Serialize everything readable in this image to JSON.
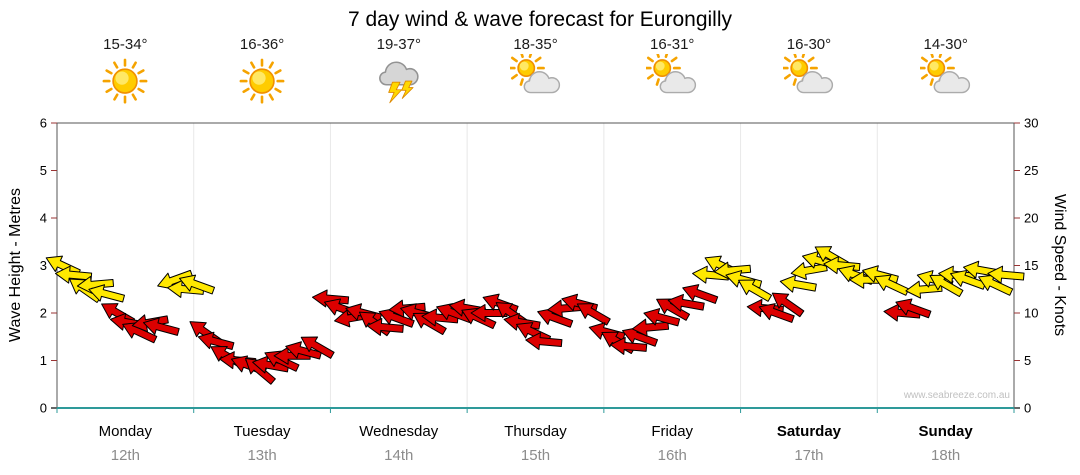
{
  "title": "7 day wind & wave forecast for Eurongilly",
  "watermark": "www.seabreeze.com.au",
  "axes": {
    "left_label": "Wave Height - Metres",
    "right_label": "Wind Speed - Knots",
    "left_ticks": [
      0,
      1,
      2,
      3,
      4,
      5,
      6
    ],
    "right_ticks": [
      0,
      5,
      10,
      15,
      20,
      25,
      30
    ]
  },
  "days": [
    {
      "name": "Monday",
      "date": "12th",
      "temp": "15-34°",
      "icon": "sunny",
      "bold": false
    },
    {
      "name": "Tuesday",
      "date": "13th",
      "temp": "16-36°",
      "icon": "sunny",
      "bold": false
    },
    {
      "name": "Wednesday",
      "date": "14th",
      "temp": "19-37°",
      "icon": "thunderstorm",
      "bold": false
    },
    {
      "name": "Thursday",
      "date": "15th",
      "temp": "18-35°",
      "icon": "sun-cloud",
      "bold": false
    },
    {
      "name": "Friday",
      "date": "16th",
      "temp": "16-31°",
      "icon": "sun-cloud",
      "bold": false
    },
    {
      "name": "Saturday",
      "date": "17th",
      "temp": "16-30°",
      "icon": "sun-cloud",
      "bold": true
    },
    {
      "name": "Sunday",
      "date": "18th",
      "temp": "14-30°",
      "icon": "sun-cloud",
      "bold": true
    }
  ],
  "colors": {
    "arrow_yellow": "#FFE800",
    "arrow_red": "#DC0000",
    "axis_teal": "#2E9A9A",
    "tick_red": "#993333",
    "date_gray": "#8C8C8C",
    "watermark_gray": "#C0C0C0"
  },
  "chart_data": {
    "type": "wind-arrows",
    "title": "7 day wind & wave forecast for Eurongilly",
    "categories": [
      "Monday 12th",
      "Tuesday 13th",
      "Wednesday 14th",
      "Thursday 15th",
      "Friday 16th",
      "Saturday 17th",
      "Sunday 18th"
    ],
    "left_axis": {
      "label": "Wave Height - Metres",
      "range": [
        0,
        6
      ]
    },
    "right_axis": {
      "label": "Wind Speed - Knots",
      "range": [
        0,
        30
      ]
    },
    "legend": "arrow color: y = yellow arrow, r = red arrow; t = position in days across 7-day span; kn = wind speed in knots (right axis); d = arrow rotation degrees (0 = pointing right)",
    "arrows": [
      {
        "t": 0.04,
        "kn": 15.0,
        "c": "y",
        "d": 205
      },
      {
        "t": 0.12,
        "kn": 14.0,
        "c": "y",
        "d": 185
      },
      {
        "t": 0.2,
        "kn": 12.5,
        "c": "y",
        "d": 215
      },
      {
        "t": 0.28,
        "kn": 13.0,
        "c": "y",
        "d": 175
      },
      {
        "t": 0.36,
        "kn": 12.0,
        "c": "y",
        "d": 195
      },
      {
        "t": 0.44,
        "kn": 10.0,
        "c": "r",
        "d": 210
      },
      {
        "t": 0.52,
        "kn": 9.0,
        "c": "r",
        "d": 190
      },
      {
        "t": 0.6,
        "kn": 8.0,
        "c": "r",
        "d": 205
      },
      {
        "t": 0.68,
        "kn": 9.0,
        "c": "r",
        "d": 170
      },
      {
        "t": 0.76,
        "kn": 8.5,
        "c": "r",
        "d": 195
      },
      {
        "t": 0.86,
        "kn": 13.5,
        "c": "y",
        "d": 160
      },
      {
        "t": 0.94,
        "kn": 12.5,
        "c": "y",
        "d": 185
      },
      {
        "t": 1.02,
        "kn": 13.0,
        "c": "y",
        "d": 200
      },
      {
        "t": 1.08,
        "kn": 8.0,
        "c": "r",
        "d": 215
      },
      {
        "t": 1.16,
        "kn": 7.0,
        "c": "r",
        "d": 195
      },
      {
        "t": 1.24,
        "kn": 5.5,
        "c": "r",
        "d": 210
      },
      {
        "t": 1.32,
        "kn": 5.0,
        "c": "r",
        "d": 185
      },
      {
        "t": 1.4,
        "kn": 4.5,
        "c": "r",
        "d": 200
      },
      {
        "t": 1.48,
        "kn": 4.0,
        "c": "r",
        "d": 220
      },
      {
        "t": 1.56,
        "kn": 4.5,
        "c": "r",
        "d": 190
      },
      {
        "t": 1.64,
        "kn": 5.0,
        "c": "r",
        "d": 205
      },
      {
        "t": 1.72,
        "kn": 5.5,
        "c": "r",
        "d": 180
      },
      {
        "t": 1.8,
        "kn": 6.0,
        "c": "r",
        "d": 195
      },
      {
        "t": 1.9,
        "kn": 6.5,
        "c": "r",
        "d": 210
      },
      {
        "t": 2.0,
        "kn": 11.5,
        "c": "r",
        "d": 185
      },
      {
        "t": 2.08,
        "kn": 10.5,
        "c": "r",
        "d": 200
      },
      {
        "t": 2.16,
        "kn": 9.5,
        "c": "r",
        "d": 170
      },
      {
        "t": 2.24,
        "kn": 10.0,
        "c": "r",
        "d": 195
      },
      {
        "t": 2.32,
        "kn": 9.0,
        "c": "r",
        "d": 215
      },
      {
        "t": 2.4,
        "kn": 8.5,
        "c": "r",
        "d": 185
      },
      {
        "t": 2.48,
        "kn": 9.5,
        "c": "r",
        "d": 200
      },
      {
        "t": 2.56,
        "kn": 10.5,
        "c": "r",
        "d": 175
      },
      {
        "t": 2.64,
        "kn": 10.0,
        "c": "r",
        "d": 195
      },
      {
        "t": 2.72,
        "kn": 9.0,
        "c": "r",
        "d": 210
      },
      {
        "t": 2.8,
        "kn": 9.5,
        "c": "r",
        "d": 185
      },
      {
        "t": 2.9,
        "kn": 10.0,
        "c": "r",
        "d": 200
      },
      {
        "t": 3.0,
        "kn": 10.5,
        "c": "r",
        "d": 190
      },
      {
        "t": 3.08,
        "kn": 9.5,
        "c": "r",
        "d": 205
      },
      {
        "t": 3.16,
        "kn": 10.0,
        "c": "r",
        "d": 180
      },
      {
        "t": 3.24,
        "kn": 11.0,
        "c": "r",
        "d": 200
      },
      {
        "t": 3.32,
        "kn": 10.0,
        "c": "r",
        "d": 215
      },
      {
        "t": 3.4,
        "kn": 9.0,
        "c": "r",
        "d": 190
      },
      {
        "t": 3.48,
        "kn": 8.0,
        "c": "r",
        "d": 205
      },
      {
        "t": 3.56,
        "kn": 7.0,
        "c": "r",
        "d": 185
      },
      {
        "t": 3.64,
        "kn": 9.5,
        "c": "r",
        "d": 200
      },
      {
        "t": 3.72,
        "kn": 10.5,
        "c": "r",
        "d": 175
      },
      {
        "t": 3.82,
        "kn": 11.0,
        "c": "r",
        "d": 195
      },
      {
        "t": 3.92,
        "kn": 10.0,
        "c": "r",
        "d": 210
      },
      {
        "t": 4.02,
        "kn": 8.0,
        "c": "r",
        "d": 195
      },
      {
        "t": 4.1,
        "kn": 7.0,
        "c": "r",
        "d": 210
      },
      {
        "t": 4.18,
        "kn": 6.5,
        "c": "r",
        "d": 185
      },
      {
        "t": 4.26,
        "kn": 7.5,
        "c": "r",
        "d": 200
      },
      {
        "t": 4.34,
        "kn": 8.5,
        "c": "r",
        "d": 175
      },
      {
        "t": 4.42,
        "kn": 9.5,
        "c": "r",
        "d": 195
      },
      {
        "t": 4.5,
        "kn": 10.5,
        "c": "r",
        "d": 210
      },
      {
        "t": 4.6,
        "kn": 11.0,
        "c": "r",
        "d": 190
      },
      {
        "t": 4.7,
        "kn": 12.0,
        "c": "r",
        "d": 200
      },
      {
        "t": 4.78,
        "kn": 14.0,
        "c": "y",
        "d": 185
      },
      {
        "t": 4.86,
        "kn": 15.0,
        "c": "y",
        "d": 205
      },
      {
        "t": 4.94,
        "kn": 14.5,
        "c": "y",
        "d": 175
      },
      {
        "t": 5.02,
        "kn": 13.5,
        "c": "y",
        "d": 195
      },
      {
        "t": 5.1,
        "kn": 12.5,
        "c": "y",
        "d": 210
      },
      {
        "t": 5.18,
        "kn": 10.5,
        "c": "r",
        "d": 185
      },
      {
        "t": 5.26,
        "kn": 10.0,
        "c": "r",
        "d": 200
      },
      {
        "t": 5.34,
        "kn": 11.0,
        "c": "r",
        "d": 215
      },
      {
        "t": 5.42,
        "kn": 13.0,
        "c": "y",
        "d": 190
      },
      {
        "t": 5.5,
        "kn": 14.5,
        "c": "y",
        "d": 170
      },
      {
        "t": 5.58,
        "kn": 15.5,
        "c": "y",
        "d": 195
      },
      {
        "t": 5.66,
        "kn": 16.0,
        "c": "y",
        "d": 210
      },
      {
        "t": 5.74,
        "kn": 15.0,
        "c": "y",
        "d": 185
      },
      {
        "t": 5.84,
        "kn": 14.0,
        "c": "y",
        "d": 200
      },
      {
        "t": 5.93,
        "kn": 13.5,
        "c": "y",
        "d": 180
      },
      {
        "t": 6.02,
        "kn": 14.0,
        "c": "y",
        "d": 195
      },
      {
        "t": 6.1,
        "kn": 13.0,
        "c": "y",
        "d": 205
      },
      {
        "t": 6.18,
        "kn": 10.0,
        "c": "r",
        "d": 185
      },
      {
        "t": 6.26,
        "kn": 10.5,
        "c": "r",
        "d": 200
      },
      {
        "t": 6.34,
        "kn": 12.5,
        "c": "y",
        "d": 175
      },
      {
        "t": 6.42,
        "kn": 13.5,
        "c": "y",
        "d": 195
      },
      {
        "t": 6.5,
        "kn": 13.0,
        "c": "y",
        "d": 210
      },
      {
        "t": 6.58,
        "kn": 14.0,
        "c": "y",
        "d": 185
      },
      {
        "t": 6.66,
        "kn": 13.5,
        "c": "y",
        "d": 200
      },
      {
        "t": 6.76,
        "kn": 14.5,
        "c": "y",
        "d": 190
      },
      {
        "t": 6.86,
        "kn": 13.0,
        "c": "y",
        "d": 205
      },
      {
        "t": 6.94,
        "kn": 14.0,
        "c": "y",
        "d": 185
      }
    ]
  }
}
